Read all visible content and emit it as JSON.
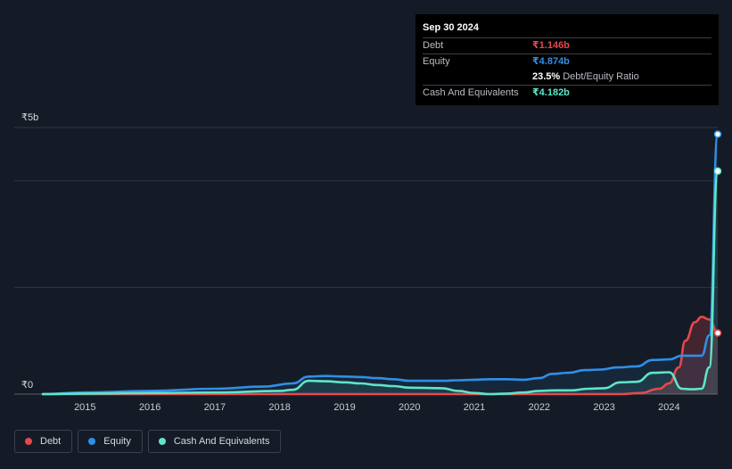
{
  "chart_data": {
    "type": "line",
    "currency": "₹",
    "y_top_label": "₹5b",
    "y_bottom_label": "₹0",
    "ylim": [
      0,
      5
    ],
    "xlim": [
      2014.35,
      2024.75
    ],
    "x_ticks": [
      "2015",
      "2016",
      "2017",
      "2018",
      "2019",
      "2020",
      "2021",
      "2022",
      "2023",
      "2024"
    ],
    "grid": true,
    "legend_position": "bottom-left",
    "series": [
      {
        "name": "Debt",
        "color": "#e5484d",
        "x": [
          2014.35,
          2018.0,
          2020.0,
          2021.0,
          2022.5,
          2023.25,
          2023.55,
          2023.85,
          2024.0,
          2024.15,
          2024.25,
          2024.4,
          2024.5,
          2024.62,
          2024.75
        ],
        "values": [
          0.0,
          0.0,
          0.0,
          0.0,
          0.0,
          0.0,
          0.02,
          0.1,
          0.2,
          0.5,
          1.0,
          1.35,
          1.45,
          1.4,
          1.146
        ]
      },
      {
        "name": "Equity",
        "color": "#2f8fe8",
        "x": [
          2014.35,
          2015.0,
          2016.0,
          2017.0,
          2017.75,
          2018.2,
          2018.45,
          2018.7,
          2019.0,
          2019.25,
          2019.5,
          2019.75,
          2020.0,
          2020.5,
          2020.75,
          2021.0,
          2021.25,
          2021.5,
          2021.75,
          2022.0,
          2022.2,
          2022.45,
          2022.7,
          2022.95,
          2023.2,
          2023.5,
          2023.75,
          2024.0,
          2024.2,
          2024.5,
          2024.62,
          2024.75
        ],
        "values": [
          0.0,
          0.03,
          0.06,
          0.1,
          0.14,
          0.2,
          0.33,
          0.34,
          0.33,
          0.32,
          0.3,
          0.28,
          0.25,
          0.25,
          0.26,
          0.27,
          0.28,
          0.28,
          0.27,
          0.3,
          0.38,
          0.4,
          0.45,
          0.46,
          0.5,
          0.52,
          0.64,
          0.65,
          0.72,
          0.72,
          1.1,
          4.874
        ]
      },
      {
        "name": "Cash And Equivalents",
        "color": "#5ee5c9",
        "x": [
          2014.35,
          2015.0,
          2016.0,
          2017.0,
          2018.0,
          2018.2,
          2018.45,
          2018.7,
          2019.0,
          2019.25,
          2019.5,
          2019.75,
          2020.0,
          2020.5,
          2020.75,
          2021.0,
          2021.25,
          2021.5,
          2021.75,
          2022.0,
          2022.25,
          2022.5,
          2022.75,
          2023.0,
          2023.25,
          2023.5,
          2023.75,
          2024.0,
          2024.2,
          2024.35,
          2024.5,
          2024.62,
          2024.75
        ],
        "values": [
          0.0,
          0.01,
          0.02,
          0.03,
          0.06,
          0.08,
          0.25,
          0.24,
          0.22,
          0.2,
          0.17,
          0.15,
          0.12,
          0.11,
          0.06,
          0.02,
          0.0,
          0.01,
          0.03,
          0.06,
          0.07,
          0.07,
          0.1,
          0.11,
          0.22,
          0.23,
          0.4,
          0.41,
          0.1,
          0.09,
          0.1,
          0.5,
          4.182
        ]
      }
    ]
  },
  "tooltip": {
    "date": "Sep 30 2024",
    "rows": [
      {
        "label": "Debt",
        "value": "₹1.146b",
        "color": "#e5484d"
      },
      {
        "label": "Equity",
        "value": "₹4.874b",
        "color": "#2f8fe8"
      },
      {
        "label": "",
        "value": "23.5%",
        "sub": "Debt/Equity Ratio",
        "color": "#ffffff"
      },
      {
        "label": "Cash And Equivalents",
        "value": "₹4.182b",
        "color": "#5ee5c9"
      }
    ]
  },
  "legend": [
    {
      "label": "Debt",
      "color": "#e5484d"
    },
    {
      "label": "Equity",
      "color": "#2f8fe8"
    },
    {
      "label": "Cash And Equivalents",
      "color": "#5ee5c9"
    }
  ]
}
